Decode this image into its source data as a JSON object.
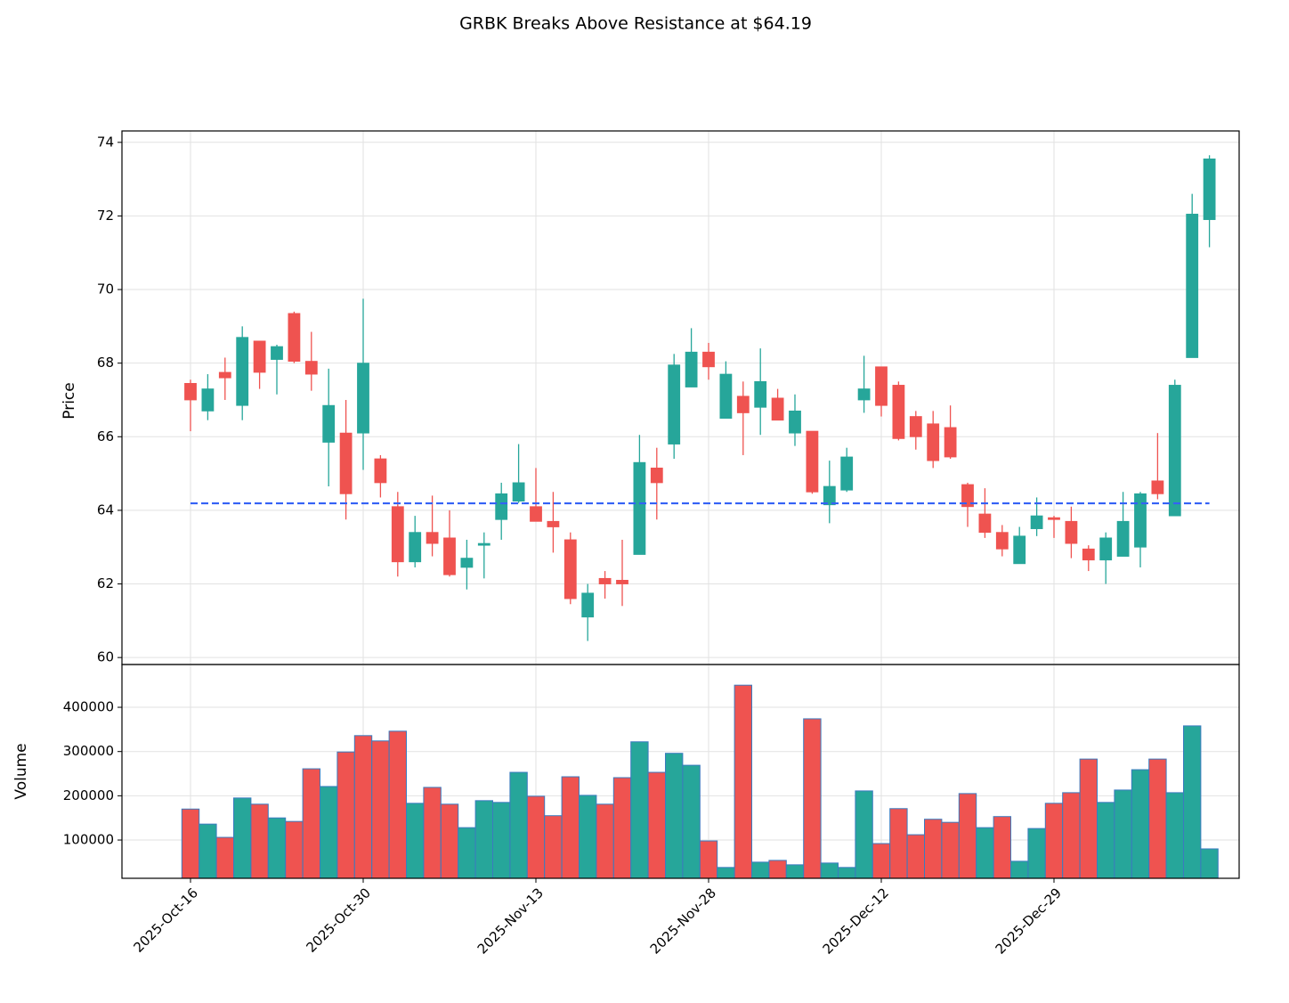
{
  "chart_data": [
    {
      "type": "candlestick",
      "title": "GRBK Breaks Above Resistance at $64.19",
      "ylabel": "Price",
      "up_color": "#26a69a",
      "down_color": "#ef5350",
      "open": [
        67.45,
        66.7,
        67.75,
        66.85,
        68.6,
        68.1,
        69.35,
        68.05,
        65.85,
        66.1,
        66.1,
        65.4,
        64.1,
        62.6,
        63.4,
        63.25,
        62.45,
        63.05,
        63.75,
        64.25,
        64.1,
        63.7,
        63.2,
        61.1,
        62.15,
        62.1,
        62.8,
        65.15,
        65.8,
        67.35,
        68.3,
        66.5,
        67.1,
        66.8,
        67.05,
        66.1,
        66.15,
        64.15,
        64.55,
        67.0,
        67.9,
        67.4,
        66.55,
        66.35,
        66.25,
        64.7,
        63.9,
        63.4,
        62.55,
        63.5,
        63.8,
        63.7,
        62.95,
        62.65,
        62.75,
        63.0,
        64.8,
        63.85,
        68.15,
        71.9
      ],
      "high": [
        67.55,
        67.7,
        68.15,
        69.0,
        68.6,
        68.5,
        69.4,
        68.85,
        67.85,
        67.0,
        69.75,
        65.5,
        64.5,
        63.85,
        64.4,
        64.0,
        63.2,
        63.4,
        64.75,
        65.8,
        65.15,
        64.5,
        63.4,
        62.0,
        62.35,
        63.2,
        66.05,
        65.7,
        68.25,
        68.95,
        68.55,
        68.05,
        67.5,
        68.4,
        67.3,
        67.15,
        66.15,
        65.35,
        65.7,
        68.2,
        67.9,
        67.5,
        66.7,
        66.7,
        66.85,
        64.75,
        64.6,
        63.6,
        63.55,
        64.35,
        63.85,
        64.1,
        63.05,
        63.4,
        64.5,
        64.5,
        66.1,
        67.55,
        72.6,
        73.65
      ],
      "low": [
        66.15,
        66.45,
        67.0,
        66.45,
        67.3,
        67.15,
        68.0,
        67.25,
        64.65,
        63.75,
        65.1,
        64.35,
        62.2,
        62.45,
        62.75,
        62.2,
        61.85,
        62.15,
        63.2,
        64.2,
        63.7,
        62.85,
        61.45,
        60.45,
        61.6,
        61.4,
        62.8,
        63.75,
        65.4,
        67.35,
        67.55,
        66.5,
        65.5,
        66.05,
        66.45,
        65.75,
        64.45,
        63.65,
        64.5,
        66.65,
        66.55,
        65.9,
        65.65,
        65.15,
        65.4,
        63.55,
        63.25,
        62.75,
        62.55,
        63.3,
        63.25,
        62.7,
        62.35,
        62.0,
        62.75,
        62.45,
        64.3,
        63.85,
        68.15,
        71.15
      ],
      "close": [
        67.0,
        67.3,
        67.6,
        68.7,
        67.75,
        68.45,
        68.05,
        67.7,
        66.85,
        64.45,
        68.0,
        64.75,
        62.6,
        63.4,
        63.1,
        62.25,
        62.7,
        63.1,
        64.45,
        64.75,
        63.7,
        63.55,
        61.6,
        61.75,
        62.0,
        62.0,
        65.3,
        64.75,
        67.95,
        68.3,
        67.9,
        67.7,
        66.65,
        67.5,
        66.45,
        66.7,
        64.5,
        64.65,
        65.45,
        67.3,
        66.85,
        65.95,
        66.0,
        65.35,
        65.45,
        64.1,
        63.4,
        62.95,
        63.3,
        63.85,
        63.75,
        63.1,
        62.65,
        63.25,
        63.7,
        64.45,
        64.45,
        67.4,
        72.05,
        73.55
      ],
      "hline": {
        "value": 64.19,
        "color": "#3461f5"
      },
      "ylim": [
        59.81,
        74.31
      ],
      "yticks": [
        60,
        62,
        64,
        66,
        68,
        70,
        72,
        74
      ],
      "grid": true
    },
    {
      "type": "bar",
      "ylabel": "Volume",
      "edge_color": "#3b7bbf",
      "categories": [
        "2025-Oct-16",
        null,
        null,
        null,
        null,
        null,
        null,
        null,
        null,
        null,
        "2025-Oct-30",
        null,
        null,
        null,
        null,
        null,
        null,
        null,
        null,
        null,
        "2025-Nov-13",
        null,
        null,
        null,
        null,
        null,
        null,
        null,
        null,
        null,
        "2025-Nov-28",
        null,
        null,
        null,
        null,
        null,
        null,
        null,
        null,
        null,
        "2025-Dec-12",
        null,
        null,
        null,
        null,
        null,
        null,
        null,
        null,
        null,
        "2025-Dec-29",
        null,
        null,
        null,
        null,
        null,
        null,
        null,
        null,
        null
      ],
      "values": [
        170000,
        136000,
        106000,
        195000,
        181000,
        150000,
        142000,
        261000,
        221000,
        299000,
        336000,
        324000,
        346000,
        183000,
        219000,
        181000,
        128000,
        189000,
        185000,
        253000,
        199000,
        155000,
        243000,
        201000,
        181000,
        241000,
        322000,
        253000,
        296000,
        269000,
        98000,
        38000,
        450000,
        50000,
        54000,
        44000,
        374000,
        48000,
        38000,
        211000,
        92000,
        171000,
        112000,
        147000,
        140000,
        205000,
        128000,
        153000,
        52000,
        126000,
        183000,
        207000,
        283000,
        185000,
        213000,
        259000,
        283000,
        207000,
        358000,
        80000
      ],
      "colors": [
        "#ef5350",
        "#26a69a",
        "#ef5350",
        "#26a69a",
        "#ef5350",
        "#26a69a",
        "#ef5350",
        "#ef5350",
        "#26a69a",
        "#ef5350",
        "#ef5350",
        "#ef5350",
        "#ef5350",
        "#26a69a",
        "#ef5350",
        "#ef5350",
        "#26a69a",
        "#26a69a",
        "#26a69a",
        "#26a69a",
        "#ef5350",
        "#ef5350",
        "#ef5350",
        "#26a69a",
        "#ef5350",
        "#ef5350",
        "#26a69a",
        "#ef5350",
        "#26a69a",
        "#26a69a",
        "#ef5350",
        "#26a69a",
        "#ef5350",
        "#26a69a",
        "#ef5350",
        "#26a69a",
        "#ef5350",
        "#26a69a",
        "#26a69a",
        "#26a69a",
        "#ef5350",
        "#ef5350",
        "#ef5350",
        "#ef5350",
        "#ef5350",
        "#ef5350",
        "#26a69a",
        "#ef5350",
        "#26a69a",
        "#26a69a",
        "#ef5350",
        "#ef5350",
        "#ef5350",
        "#26a69a",
        "#26a69a",
        "#26a69a",
        "#ef5350",
        "#26a69a",
        "#26a69a",
        "#26a69a"
      ],
      "ylim": [
        13500,
        496700
      ],
      "yticks": [
        100000,
        200000,
        300000,
        400000
      ],
      "grid": true
    }
  ]
}
